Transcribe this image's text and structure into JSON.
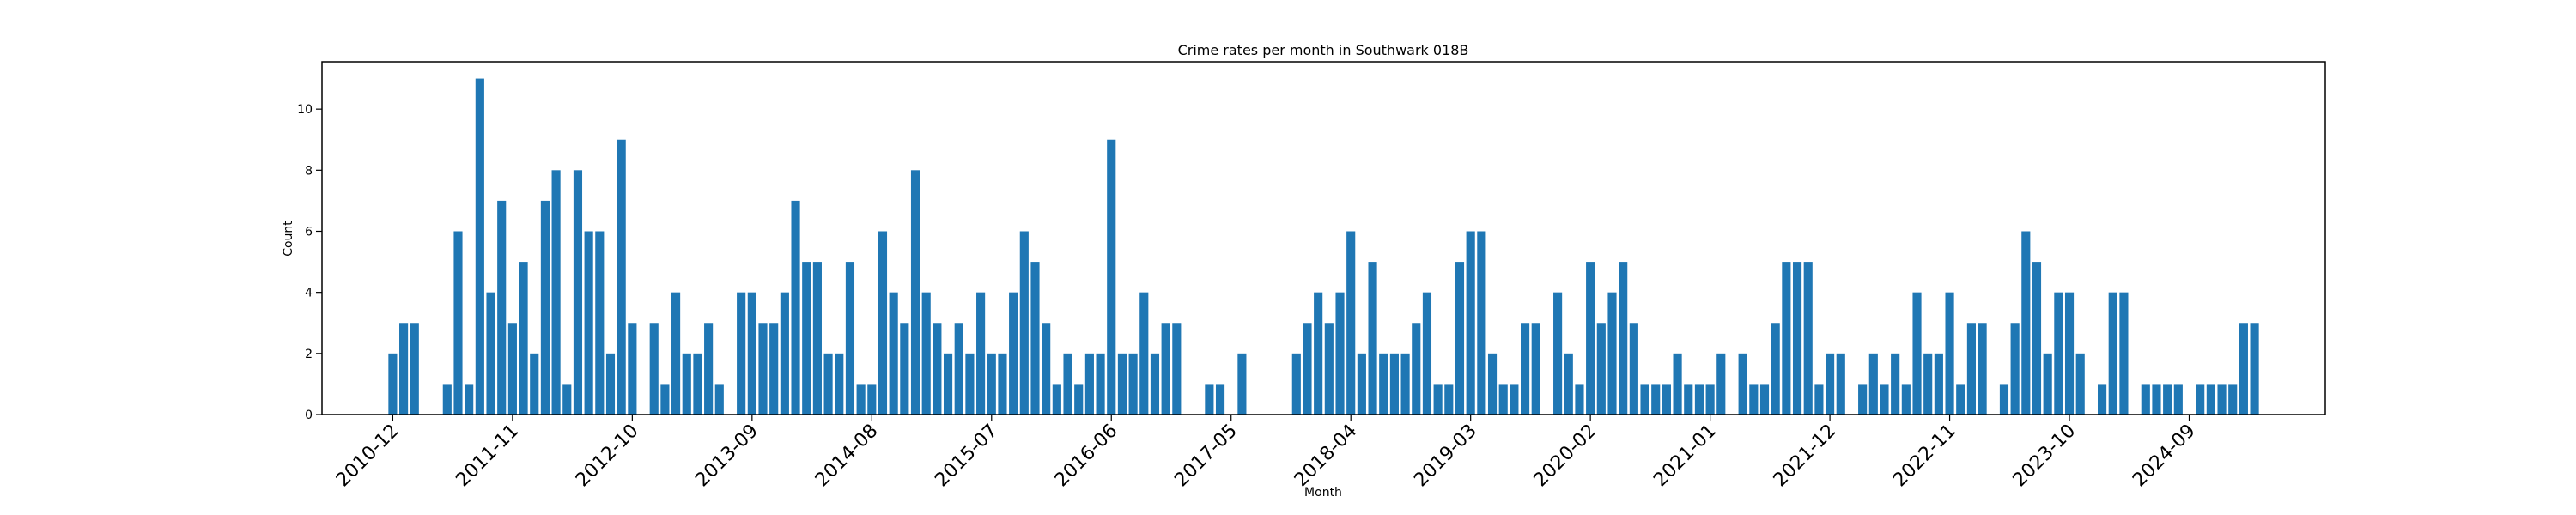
{
  "chart_data": {
    "type": "bar",
    "title": "Crime rates per month in Southwark 018B",
    "xlabel": "Month",
    "ylabel": "Count",
    "ylim": [
      0,
      11.55
    ],
    "yticks": [
      0,
      2,
      4,
      6,
      8,
      10
    ],
    "grid": false,
    "bar_color": "#1f77b4",
    "x_start": "2010-12",
    "x_end": "2024-10",
    "xticks": [
      "2010-12",
      "2011-11",
      "2012-10",
      "2013-09",
      "2014-08",
      "2015-07",
      "2016-06",
      "2017-05",
      "2018-04",
      "2019-03",
      "2020-02",
      "2021-01",
      "2021-12",
      "2022-11",
      "2023-10",
      "2024-09"
    ],
    "series": [
      {
        "values": [
          [
            2,
            3,
            3,
            0,
            0,
            1,
            6,
            1,
            11,
            4,
            7,
            3,
            5
          ],
          [
            2,
            7,
            8,
            1,
            8,
            6,
            6,
            2,
            9,
            3,
            0,
            3
          ],
          [
            1,
            4,
            2,
            2,
            3,
            1,
            0,
            4,
            4,
            3,
            3,
            4,
            7
          ],
          [
            5,
            5,
            2,
            2,
            5,
            1,
            1,
            6,
            4,
            3,
            8,
            4
          ],
          [
            3,
            2,
            3,
            2,
            4,
            2,
            2,
            4,
            6,
            5,
            3,
            1
          ],
          [
            2,
            1,
            2,
            2,
            9,
            2,
            2,
            4,
            2,
            3,
            3,
            0
          ],
          [
            0,
            1,
            1,
            0,
            2,
            0,
            0,
            0,
            0,
            2,
            3,
            4
          ],
          [
            3,
            4,
            6,
            2,
            5,
            2,
            2,
            2,
            3,
            4,
            1,
            1
          ],
          [
            5,
            6,
            6,
            2,
            1,
            1,
            3,
            3,
            0,
            4,
            2,
            1
          ],
          [
            5,
            3,
            4,
            5,
            3,
            1,
            1,
            1,
            2,
            1,
            1,
            1
          ],
          [
            2,
            0,
            2,
            1,
            1,
            3,
            5,
            5,
            5,
            1,
            2,
            2
          ],
          [
            0,
            1,
            2,
            1,
            2,
            1,
            4,
            2,
            2,
            4,
            1,
            3
          ],
          [
            3,
            0,
            1,
            3,
            6,
            5,
            2,
            4,
            4,
            2,
            0,
            1
          ],
          [
            4,
            4,
            0,
            1,
            1,
            1,
            1,
            0,
            1,
            1,
            1,
            1
          ],
          [
            3,
            3
          ]
        ]
      }
    ]
  }
}
